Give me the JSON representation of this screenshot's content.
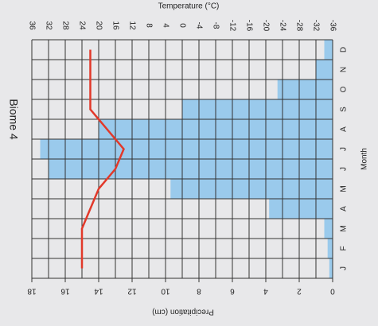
{
  "chart_data": {
    "type": "bar",
    "orientation": "horizontal",
    "value_direction": "right-to-left",
    "title": "Biome 4",
    "x_label": "Month",
    "y_label": "Precipitation (cm)",
    "y2_label": "Temperature (°C)",
    "categories": [
      "J",
      "F",
      "M",
      "A",
      "M",
      "J",
      "J",
      "A",
      "S",
      "O",
      "N",
      "D"
    ],
    "series": [
      {
        "type": "bar",
        "color": "#8cc4ec",
        "values": [
          0.2,
          0.3,
          0.5,
          3.8,
          9.7,
          17,
          17.5,
          14,
          9,
          3.3,
          1,
          0.5
        ]
      },
      {
        "type": "line",
        "axis": "y2",
        "color": "#e2392a",
        "values": [
          24,
          24,
          24,
          22,
          20,
          16,
          14,
          18,
          22,
          22,
          22,
          22
        ]
      }
    ],
    "ylim": [
      0,
      18
    ],
    "yticks": [
      0,
      2,
      4,
      6,
      8,
      10,
      12,
      14,
      16,
      18
    ],
    "y2lim": [
      -36,
      36
    ],
    "y2ticks": [
      -36,
      -32,
      -28,
      -24,
      -20,
      -16,
      -12,
      -8,
      -4,
      0,
      4,
      8,
      12,
      16,
      20,
      24,
      28,
      32,
      36
    ],
    "grid": true
  }
}
